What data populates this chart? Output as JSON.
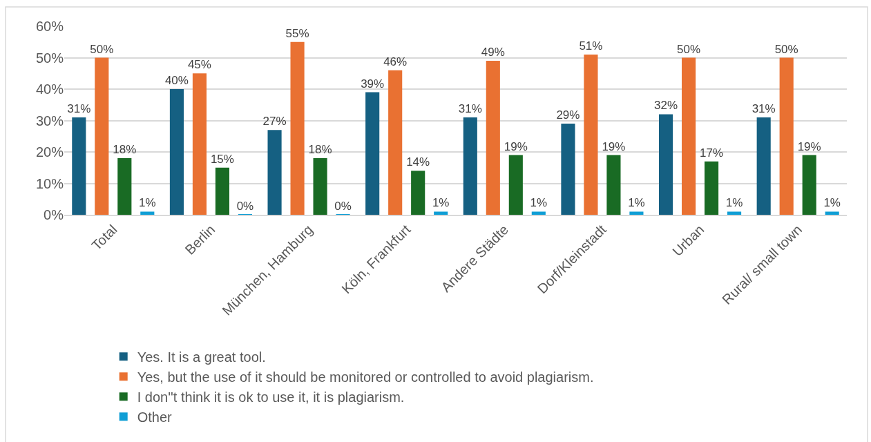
{
  "chart_data": {
    "type": "bar",
    "categories": [
      "Total",
      "Berlin",
      "München, Hamburg",
      "Köln, Frankfurt",
      "Andere Städte",
      "Dorf/Kleinstadt",
      "Urban",
      "Rural/ small town"
    ],
    "series": [
      {
        "name": "Yes. It is a great tool.",
        "color": "#156082",
        "values": [
          31,
          40,
          27,
          39,
          31,
          29,
          32,
          31
        ],
        "value_labels": [
          "31%",
          "40%",
          "27%",
          "39%",
          "31%",
          "29%",
          "32%",
          "31%"
        ]
      },
      {
        "name": "Yes, but the use of it should be monitored or controlled to avoid plagiarism.",
        "color": "#e97132",
        "values": [
          50,
          45,
          55,
          46,
          49,
          51,
          50,
          50
        ],
        "value_labels": [
          "50%",
          "45%",
          "55%",
          "46%",
          "49%",
          "51%",
          "50%",
          "50%"
        ]
      },
      {
        "name": "I don''t think it is ok to use it, it is plagiarism.",
        "color": "#196b24",
        "values": [
          18,
          15,
          18,
          14,
          19,
          19,
          17,
          19
        ],
        "value_labels": [
          "18%",
          "15%",
          "18%",
          "14%",
          "19%",
          "19%",
          "17%",
          "19%"
        ]
      },
      {
        "name": "Other",
        "color": "#0f9ed5",
        "values": [
          1,
          0,
          0,
          1,
          1,
          1,
          1,
          1
        ],
        "value_labels": [
          "1%",
          "0%",
          "0%",
          "1%",
          "1%",
          "1%",
          "1%",
          "1%"
        ]
      }
    ],
    "ylim": [
      0,
      60
    ],
    "yticks": [
      {
        "value": 0,
        "label": "0%"
      },
      {
        "value": 10,
        "label": "10%"
      },
      {
        "value": 20,
        "label": "20%"
      },
      {
        "value": 30,
        "label": "30%"
      },
      {
        "value": 40,
        "label": "40%"
      },
      {
        "value": 50,
        "label": "50%"
      },
      {
        "value": 60,
        "label": "60%"
      }
    ],
    "grid": "y",
    "legend": "bottom"
  }
}
